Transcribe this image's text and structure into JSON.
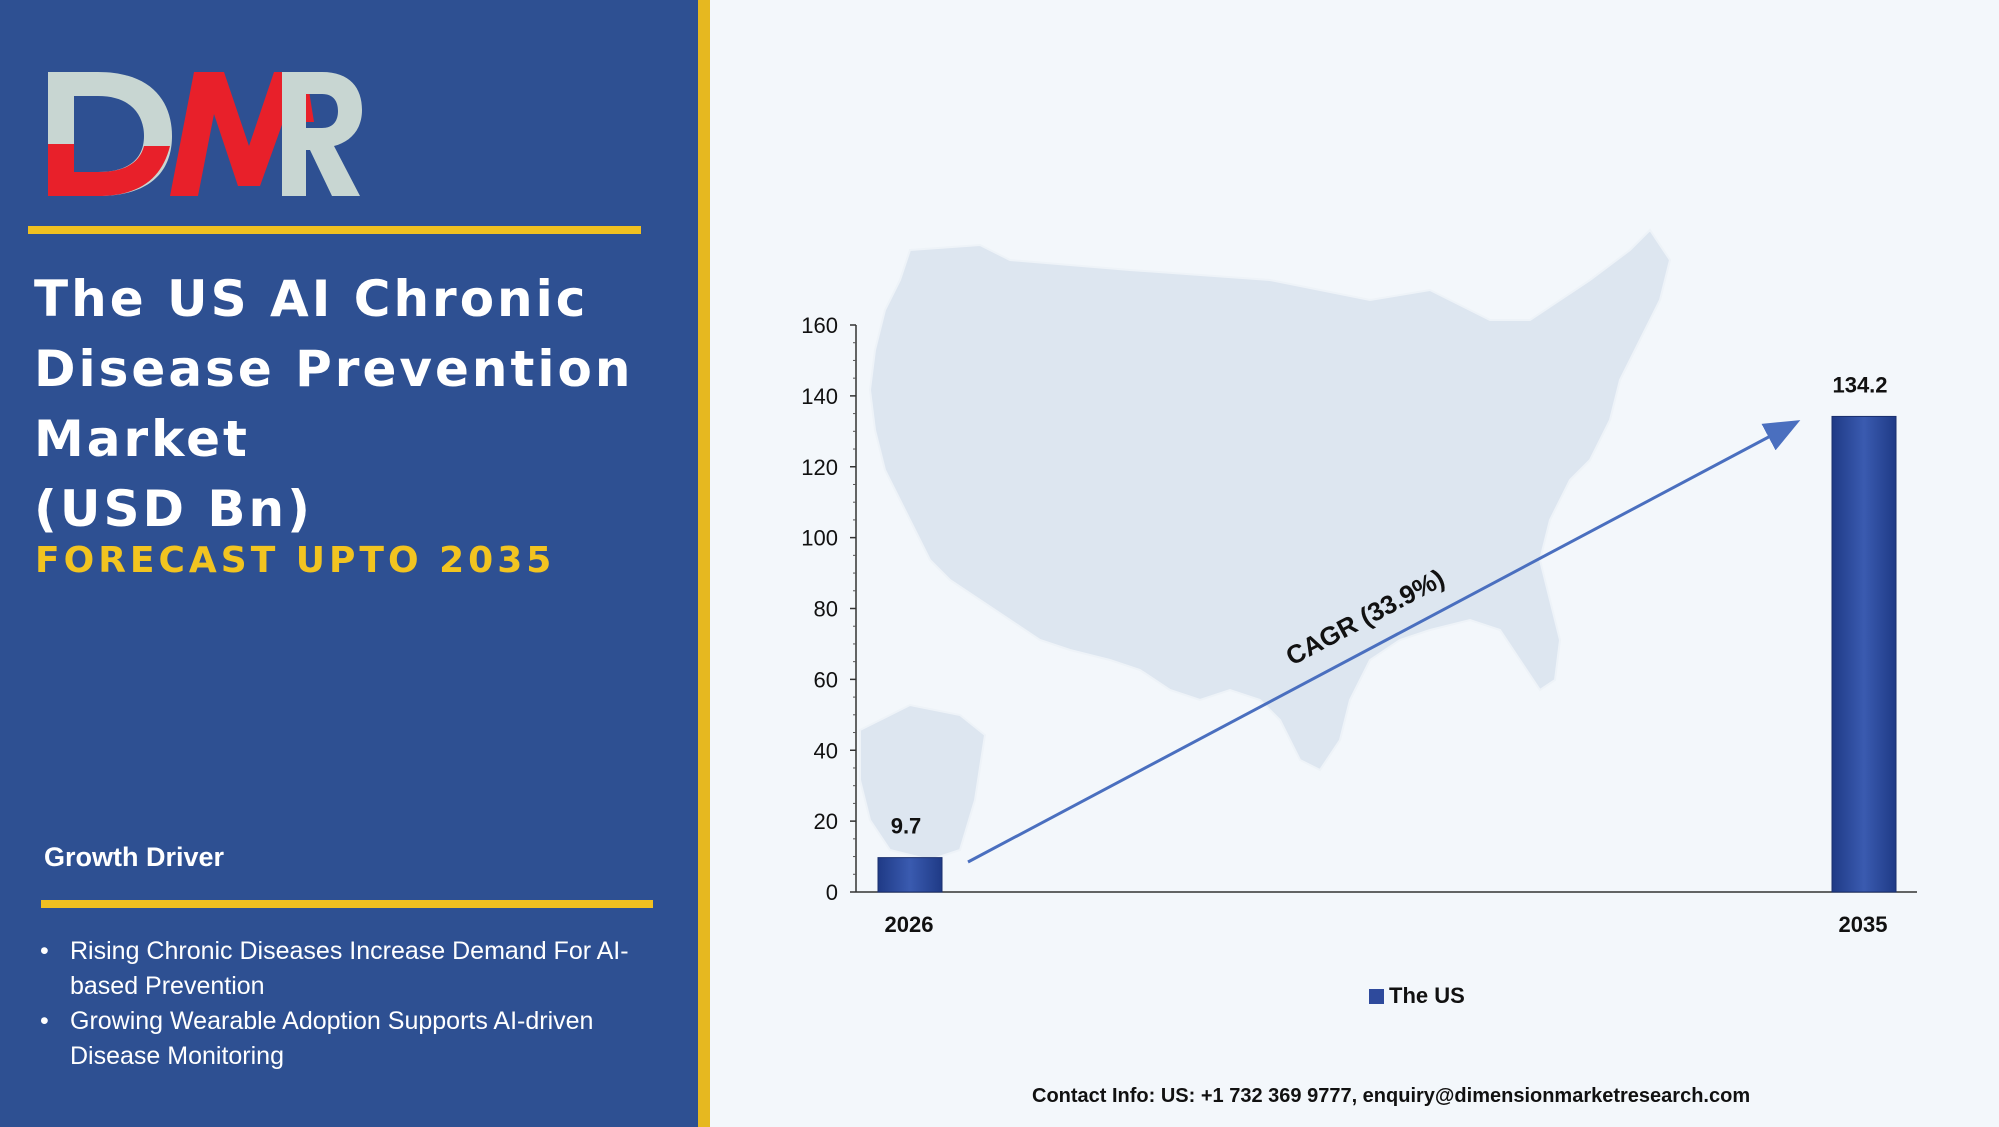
{
  "brand": {
    "logo_text": "DMR",
    "colors": {
      "panel": "#2e5092",
      "accent": "#f0c020",
      "logo_red": "#e8202a",
      "logo_grey": "#c8d6d2",
      "bar": "#2e4a9c"
    }
  },
  "title_lines": [
    "The US AI Chronic",
    "Disease Prevention",
    "Market",
    "(USD Bn)"
  ],
  "forecast": "FORECAST UPTO 2035",
  "growth": {
    "title": "Growth Driver",
    "items": [
      "Rising Chronic Diseases Increase Demand For AI-based Prevention",
      "Growing Wearable Adoption Supports AI-driven Disease Monitoring"
    ]
  },
  "chart_data": {
    "type": "bar",
    "categories": [
      "2026",
      "2035"
    ],
    "series": [
      {
        "name": "The US",
        "values": [
          9.7,
          134.2
        ]
      }
    ],
    "data_labels": [
      "9.7",
      "134.2"
    ],
    "ylim": [
      0,
      160
    ],
    "yticks": [
      0,
      20,
      40,
      60,
      80,
      100,
      120,
      140,
      160
    ],
    "annotation": "CAGR (33.9%)",
    "legend": "bottom-center",
    "grid": false,
    "background": "US map silhouette"
  },
  "contact": "Contact Info: US: +1 732 369 9777, enquiry@dimensionmarketresearch.com"
}
